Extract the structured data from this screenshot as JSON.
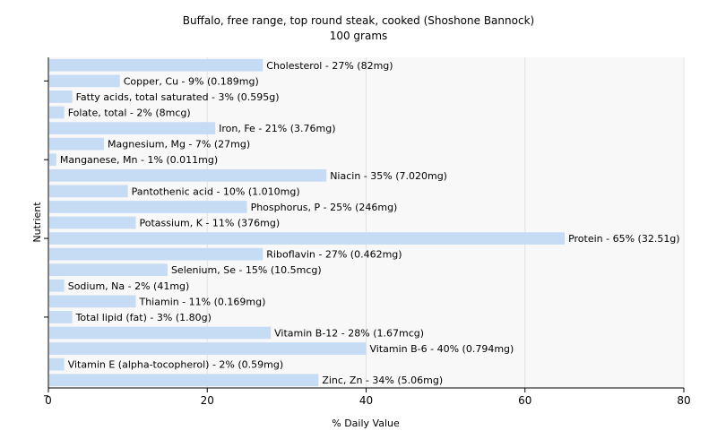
{
  "chart_data": {
    "type": "bar",
    "orientation": "horizontal",
    "title": "Buffalo, free range, top round steak, cooked (Shoshone Bannock)",
    "subtitle": "100 grams",
    "xlabel": "% Daily Value",
    "ylabel": "Nutrient",
    "xlim": [
      0,
      80
    ],
    "xticks": [
      0,
      20,
      40,
      60,
      80
    ],
    "grid": true,
    "bar_color": "#c6dcf5",
    "categories": [
      "Cholesterol",
      "Copper, Cu",
      "Fatty acids, total saturated",
      "Folate, total",
      "Iron, Fe",
      "Magnesium, Mg",
      "Manganese, Mn",
      "Niacin",
      "Pantothenic acid",
      "Phosphorus, P",
      "Potassium, K",
      "Protein",
      "Riboflavin",
      "Selenium, Se",
      "Sodium, Na",
      "Thiamin",
      "Total lipid (fat)",
      "Vitamin B-12",
      "Vitamin B-6",
      "Vitamin E (alpha-tocopherol)",
      "Zinc, Zn"
    ],
    "values": [
      27,
      9,
      3,
      2,
      21,
      7,
      1,
      35,
      10,
      25,
      11,
      65,
      27,
      15,
      2,
      11,
      3,
      28,
      40,
      2,
      34
    ],
    "labels": [
      "Cholesterol - 27% (82mg)",
      "Copper, Cu - 9% (0.189mg)",
      "Fatty acids, total saturated - 3% (0.595g)",
      "Folate, total - 2% (8mcg)",
      "Iron, Fe - 21% (3.76mg)",
      "Magnesium, Mg - 7% (27mg)",
      "Manganese, Mn - 1% (0.011mg)",
      "Niacin - 35% (7.020mg)",
      "Pantothenic acid - 10% (1.010mg)",
      "Phosphorus, P - 25% (246mg)",
      "Potassium, K - 11% (376mg)",
      "Protein - 65% (32.51g)",
      "Riboflavin - 27% (0.462mg)",
      "Selenium, Se - 15% (10.5mcg)",
      "Sodium, Na - 2% (41mg)",
      "Thiamin - 11% (0.169mg)",
      "Total lipid (fat) - 3% (1.80g)",
      "Vitamin B-12 - 28% (1.67mcg)",
      "Vitamin B-6 - 40% (0.794mg)",
      "Vitamin E (alpha-tocopherol) - 2% (0.59mg)",
      "Zinc, Zn - 34% (5.06mg)"
    ]
  }
}
